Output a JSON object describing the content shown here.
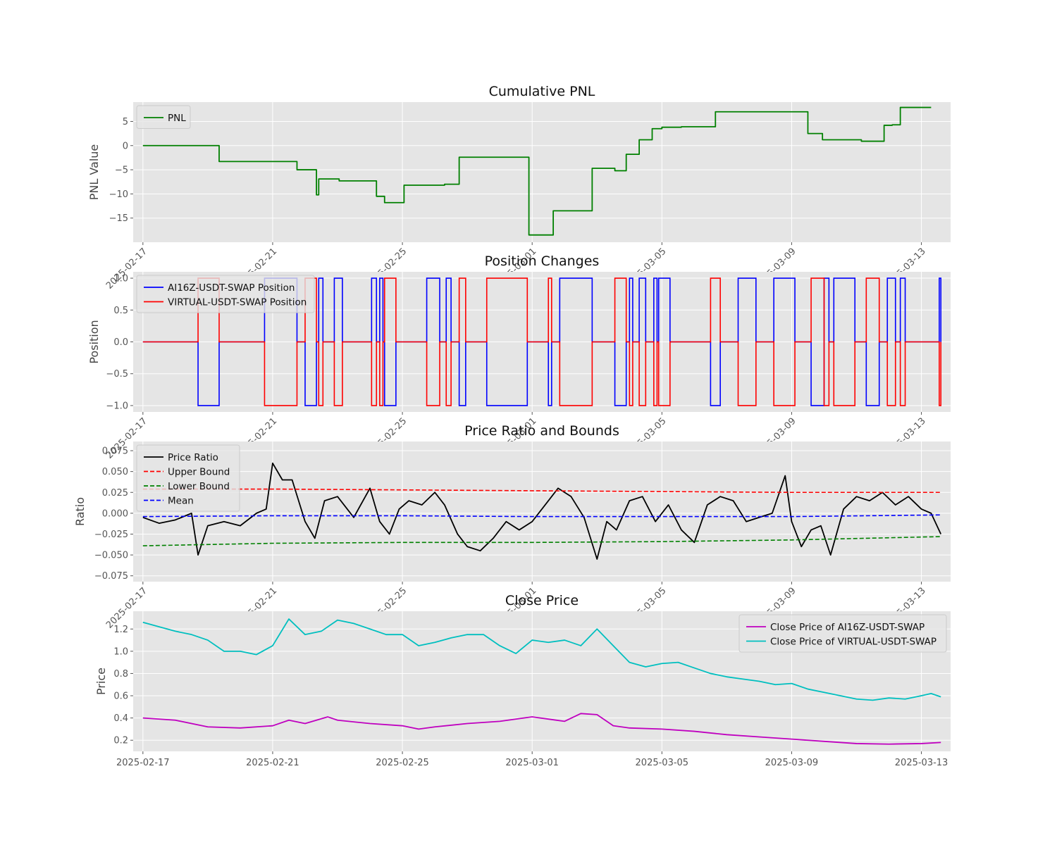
{
  "figure": {
    "background": "#ffffff",
    "axes_background": "#e5e5e5"
  },
  "chart_data": [
    {
      "id": "pnl",
      "type": "line",
      "title": "Cumulative PNL",
      "xlabel": "",
      "ylabel": "PNL Value",
      "xlim": [
        -0.3,
        24.9
      ],
      "ylim": [
        -20,
        9
      ],
      "yticks": [
        -15,
        -10,
        -5,
        0,
        5
      ],
      "ytick_labels": [
        "−15",
        "−10",
        "−5",
        "0",
        "5"
      ],
      "xticks": [
        0,
        4,
        8,
        12,
        16,
        20,
        24
      ],
      "xtick_labels": [
        "2025-02-17",
        "2025-02-21",
        "2025-02-25",
        "2025-03-01",
        "2025-03-05",
        "2025-03-09",
        "2025-03-13"
      ],
      "x_rotated": true,
      "legend": {
        "placement": "upper-left"
      },
      "grid": true,
      "series": [
        {
          "name": "PNL",
          "color": "#008000",
          "style": "step",
          "x": [
            0,
            2.35,
            4.75,
            5.35,
            5.42,
            6.05,
            7.2,
            7.45,
            8.05,
            9.3,
            9.75,
            11.9,
            12.65,
            13.85,
            14.55,
            14.9,
            15.3,
            15.7,
            16.0,
            16.6,
            17.65,
            19.1,
            20.5,
            20.95,
            22.15,
            22.85,
            23.1,
            23.35,
            24.3
          ],
          "y": [
            0,
            -3.3,
            -5.0,
            -10.2,
            -6.9,
            -7.3,
            -10.5,
            -11.8,
            -8.2,
            -8.0,
            -2.4,
            -18.5,
            -13.5,
            -4.7,
            -5.2,
            -1.8,
            1.2,
            3.5,
            3.8,
            3.9,
            7.0,
            7.0,
            2.5,
            1.2,
            0.9,
            4.2,
            4.3,
            7.9,
            7.9
          ]
        }
      ]
    },
    {
      "id": "position",
      "type": "line",
      "title": "Position Changes",
      "xlabel": "",
      "ylabel": "Position",
      "xlim": [
        -0.3,
        24.9
      ],
      "ylim": [
        -1.1,
        1.1
      ],
      "yticks": [
        -1.0,
        -0.5,
        0.0,
        0.5,
        1.0
      ],
      "ytick_labels": [
        "−1.0",
        "−0.5",
        "0.0",
        "0.5",
        "1.0"
      ],
      "xticks": [
        0,
        4,
        8,
        12,
        16,
        20,
        24
      ],
      "xtick_labels": [
        "2025-02-17",
        "2025-02-21",
        "2025-02-25",
        "2025-03-01",
        "2025-03-05",
        "2025-03-09",
        "2025-03-13"
      ],
      "x_rotated": true,
      "legend": {
        "placement": "upper-left"
      },
      "grid": true,
      "trades": [
        [
          1.7,
          2.35,
          -1
        ],
        [
          3.75,
          4.75,
          1
        ],
        [
          5.0,
          5.35,
          -1
        ],
        [
          5.42,
          5.55,
          1
        ],
        [
          5.9,
          6.15,
          1
        ],
        [
          7.05,
          7.2,
          1
        ],
        [
          7.3,
          7.4,
          1
        ],
        [
          7.45,
          7.8,
          -1
        ],
        [
          8.75,
          9.15,
          1
        ],
        [
          9.35,
          9.5,
          1
        ],
        [
          9.75,
          9.95,
          -1
        ],
        [
          10.6,
          11.85,
          -1
        ],
        [
          12.5,
          12.6,
          -1
        ],
        [
          12.85,
          13.85,
          1
        ],
        [
          14.55,
          14.9,
          -1
        ],
        [
          15.0,
          15.1,
          1
        ],
        [
          15.3,
          15.5,
          1
        ],
        [
          15.75,
          15.85,
          1
        ],
        [
          15.9,
          16.25,
          1
        ],
        [
          17.5,
          17.8,
          -1
        ],
        [
          18.35,
          18.9,
          1
        ],
        [
          19.45,
          20.1,
          1
        ],
        [
          20.6,
          21.0,
          -1
        ],
        [
          21.0,
          21.15,
          1
        ],
        [
          21.3,
          21.95,
          1
        ],
        [
          22.3,
          22.7,
          -1
        ],
        [
          22.95,
          23.2,
          1
        ],
        [
          23.35,
          23.5,
          1
        ],
        [
          24.55,
          24.6,
          1
        ]
      ],
      "series": [
        {
          "name": "AI16Z-USDT-SWAP Position",
          "color": "#0000ff",
          "sign": 1
        },
        {
          "name": "VIRTUAL-USDT-SWAP Position",
          "color": "#ff0000",
          "sign": -1
        }
      ]
    },
    {
      "id": "ratio",
      "type": "line",
      "title": "Price Ratio and Bounds",
      "xlabel": "",
      "ylabel": "Ratio",
      "xlim": [
        -0.3,
        24.9
      ],
      "ylim": [
        -0.082,
        0.086
      ],
      "yticks": [
        -0.075,
        -0.05,
        -0.025,
        0.0,
        0.025,
        0.05,
        0.075
      ],
      "ytick_labels": [
        "−0.075",
        "−0.050",
        "−0.025",
        "0.000",
        "0.025",
        "0.050",
        "0.075"
      ],
      "xticks": [
        0,
        4,
        8,
        12,
        16,
        20,
        24
      ],
      "xtick_labels": [
        "2025-02-17",
        "2025-02-21",
        "2025-02-25",
        "2025-03-01",
        "2025-03-05",
        "2025-03-09",
        "2025-03-13"
      ],
      "x_rotated": true,
      "legend": {
        "placement": "upper-left"
      },
      "grid": true,
      "series": [
        {
          "name": "Price Ratio",
          "color": "#000000",
          "dashed": false,
          "x": [
            0,
            0.5,
            1.0,
            1.5,
            1.7,
            2.0,
            2.5,
            3.0,
            3.5,
            3.8,
            4.0,
            4.3,
            4.6,
            5.0,
            5.3,
            5.6,
            6.0,
            6.5,
            7.0,
            7.3,
            7.6,
            7.9,
            8.2,
            8.6,
            9.0,
            9.3,
            9.7,
            10.0,
            10.4,
            10.8,
            11.2,
            11.6,
            12.0,
            12.4,
            12.8,
            13.2,
            13.6,
            14.0,
            14.3,
            14.6,
            15.0,
            15.4,
            15.8,
            16.2,
            16.6,
            17.0,
            17.4,
            17.8,
            18.2,
            18.6,
            19.0,
            19.4,
            19.8,
            20.0,
            20.3,
            20.6,
            20.9,
            21.2,
            21.6,
            22.0,
            22.4,
            22.8,
            23.2,
            23.6,
            24.0,
            24.3,
            24.6
          ],
          "y": [
            -0.005,
            -0.012,
            -0.008,
            0.0,
            -0.05,
            -0.015,
            -0.01,
            -0.015,
            0.0,
            0.005,
            0.06,
            0.04,
            0.04,
            -0.01,
            -0.03,
            0.015,
            0.02,
            -0.005,
            0.03,
            -0.01,
            -0.025,
            0.005,
            0.015,
            0.01,
            0.025,
            0.01,
            -0.025,
            -0.04,
            -0.045,
            -0.03,
            -0.01,
            -0.02,
            -0.01,
            0.01,
            0.03,
            0.02,
            -0.005,
            -0.055,
            -0.01,
            -0.02,
            0.015,
            0.02,
            -0.01,
            0.01,
            -0.02,
            -0.035,
            0.01,
            0.02,
            0.015,
            -0.01,
            -0.005,
            0.0,
            0.045,
            -0.01,
            -0.04,
            -0.02,
            -0.015,
            -0.05,
            0.005,
            0.02,
            0.015,
            0.025,
            0.01,
            0.02,
            0.005,
            0.0,
            -0.025
          ]
        },
        {
          "name": "Upper Bound",
          "color": "#ff0000",
          "dashed": true,
          "x": [
            0,
            4,
            8,
            12,
            16,
            20,
            24.6
          ],
          "y": [
            0.029,
            0.029,
            0.028,
            0.027,
            0.026,
            0.025,
            0.025
          ]
        },
        {
          "name": "Lower Bound",
          "color": "#008000",
          "dashed": true,
          "x": [
            0,
            4,
            8,
            12,
            16,
            20,
            24.6
          ],
          "y": [
            -0.039,
            -0.036,
            -0.035,
            -0.035,
            -0.034,
            -0.032,
            -0.028
          ]
        },
        {
          "name": "Mean",
          "color": "#0000ff",
          "dashed": true,
          "x": [
            0,
            4,
            8,
            12,
            16,
            20,
            24.6
          ],
          "y": [
            -0.004,
            -0.003,
            -0.003,
            -0.004,
            -0.004,
            -0.004,
            -0.002
          ]
        }
      ]
    },
    {
      "id": "close",
      "type": "line",
      "title": "Close Price",
      "xlabel": "",
      "ylabel": "Price",
      "xlim": [
        -0.3,
        24.9
      ],
      "ylim": [
        0.1,
        1.36
      ],
      "yticks": [
        0.2,
        0.4,
        0.6,
        0.8,
        1.0,
        1.2
      ],
      "ytick_labels": [
        "0.2",
        "0.4",
        "0.6",
        "0.8",
        "1.0",
        "1.2"
      ],
      "xticks": [
        0,
        4,
        8,
        12,
        16,
        20,
        24
      ],
      "xtick_labels": [
        "2025-02-17",
        "2025-02-21",
        "2025-02-25",
        "2025-03-01",
        "2025-03-05",
        "2025-03-09",
        "2025-03-13"
      ],
      "x_rotated": false,
      "legend": {
        "placement": "upper-right"
      },
      "grid": true,
      "series": [
        {
          "name": "Close Price of AI16Z-USDT-SWAP",
          "color": "#bf00bf",
          "dashed": false,
          "x": [
            0,
            1,
            2,
            3,
            4,
            4.5,
            5,
            5.7,
            6,
            7,
            8,
            8.5,
            9,
            10,
            11,
            12,
            12.5,
            13,
            13.5,
            14,
            14.5,
            15,
            16,
            17,
            18,
            19,
            20,
            21,
            22,
            23,
            24,
            24.6
          ],
          "y": [
            0.4,
            0.38,
            0.32,
            0.31,
            0.33,
            0.38,
            0.35,
            0.41,
            0.38,
            0.35,
            0.33,
            0.3,
            0.32,
            0.35,
            0.37,
            0.41,
            0.39,
            0.37,
            0.44,
            0.43,
            0.33,
            0.31,
            0.3,
            0.28,
            0.25,
            0.23,
            0.21,
            0.19,
            0.17,
            0.165,
            0.17,
            0.18
          ]
        },
        {
          "name": "Close Price of VIRTUAL-USDT-SWAP",
          "color": "#00bfbf",
          "dashed": false,
          "x": [
            0,
            0.5,
            1,
            1.5,
            2,
            2.5,
            3,
            3.5,
            4,
            4.5,
            5,
            5.5,
            6,
            6.5,
            7,
            7.5,
            8,
            8.5,
            9,
            9.5,
            10,
            10.5,
            11,
            11.5,
            12,
            12.5,
            13,
            13.5,
            14,
            14.5,
            15,
            15.5,
            16,
            16.5,
            17,
            17.5,
            18,
            18.5,
            19,
            19.5,
            20,
            20.5,
            21,
            21.5,
            22,
            22.5,
            23,
            23.5,
            24,
            24.3,
            24.6
          ],
          "y": [
            1.26,
            1.22,
            1.18,
            1.15,
            1.1,
            1.0,
            1.0,
            0.97,
            1.05,
            1.29,
            1.15,
            1.18,
            1.28,
            1.25,
            1.2,
            1.15,
            1.15,
            1.05,
            1.08,
            1.12,
            1.15,
            1.15,
            1.05,
            0.98,
            1.1,
            1.08,
            1.1,
            1.05,
            1.2,
            1.05,
            0.9,
            0.86,
            0.89,
            0.9,
            0.85,
            0.8,
            0.77,
            0.75,
            0.73,
            0.7,
            0.71,
            0.66,
            0.63,
            0.6,
            0.57,
            0.56,
            0.58,
            0.57,
            0.6,
            0.62,
            0.59
          ]
        }
      ]
    }
  ]
}
